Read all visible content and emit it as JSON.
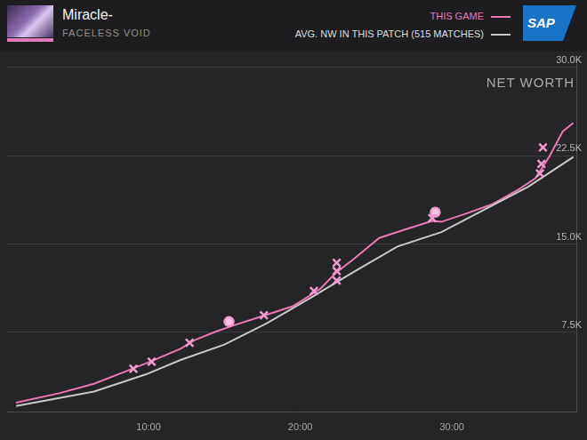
{
  "header": {
    "player": "Miracle-",
    "hero": "FACELESS VOID",
    "logo": "SAP"
  },
  "chart_data": {
    "type": "line",
    "title": "NET WORTH",
    "legend": "top right",
    "grid": true,
    "xlim": [
      0.7,
      38.2
    ],
    "xticks": [
      {
        "value": 10,
        "label": "10:00"
      },
      {
        "value": 20,
        "label": "20:00"
      },
      {
        "value": 30,
        "label": "30:00"
      }
    ],
    "ylim": [
      700,
      30400
    ],
    "yticks": [
      {
        "value": 7500,
        "label": "7.5K"
      },
      {
        "value": 15000,
        "label": "15.0K"
      },
      {
        "value": 22500,
        "label": "22.5K"
      },
      {
        "value": 30000,
        "label": "30.0K"
      }
    ],
    "series": [
      {
        "name": "AVG. NW IN THIS PATCH (515 MATCHES)",
        "color": "#c8c8c8",
        "line_style": "solid",
        "x": [
          1.26,
          6.4,
          9.8,
          12.1,
          15.0,
          17.8,
          20.7,
          23.5,
          26.4,
          29.3,
          32.1,
          35.0,
          38.0
        ],
        "values": [
          1230,
          2460,
          3910,
          5140,
          6450,
          8260,
          10430,
          12610,
          14780,
          16010,
          17900,
          19850,
          22390
        ]
      },
      {
        "name": "THIS GAME",
        "color": "#e879b6",
        "line_style": "solid",
        "x": [
          1.26,
          4.1,
          6.4,
          8.7,
          10.1,
          12.1,
          13.0,
          14.4,
          15.5,
          17.8,
          19.5,
          21.3,
          22.4,
          23.5,
          25.2,
          26.9,
          28.7,
          29.3,
          31.0,
          32.7,
          34.4,
          35.5,
          36.4,
          37.3,
          38.0
        ],
        "values": [
          1520,
          2320,
          3120,
          4280,
          5000,
          6090,
          6810,
          7540,
          8040,
          8990,
          9710,
          11160,
          12610,
          13700,
          15510,
          16230,
          16960,
          16880,
          17610,
          18400,
          19640,
          20580,
          22390,
          24560,
          25290
        ]
      },
      {
        "type": "scatter",
        "marker": "crossRot",
        "color": "#f09ad0",
        "x": [
          9.0,
          10.2,
          12.7,
          17.6,
          20.9,
          22.4,
          22.4,
          22.4,
          28.7,
          35.8,
          35.9,
          36.0
        ],
        "values": [
          4400,
          5000,
          6600,
          8950,
          11000,
          11900,
          12700,
          13400,
          17200,
          21000,
          21800,
          23200
        ]
      },
      {
        "type": "scatter",
        "marker": "circle",
        "color": "#f09ad0",
        "x": [
          15.3,
          28.9
        ],
        "values": [
          8400,
          17700
        ]
      }
    ]
  }
}
